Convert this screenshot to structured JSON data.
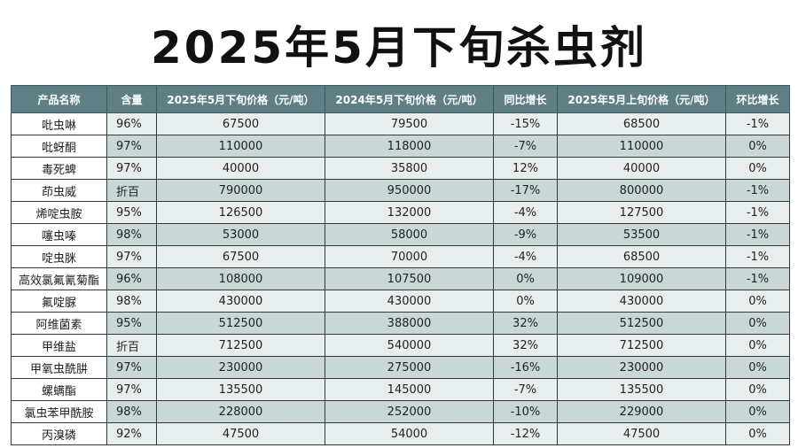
{
  "title": "2025年5月下旬杀虫剂",
  "table": {
    "headers": [
      "产品名称",
      "含量",
      "2025年5月下旬价格（元/吨）",
      "2024年5月下旬价格（元/吨）",
      "同比增长",
      "2025年5月上旬价格（元/吨）",
      "环比增长"
    ],
    "rows": [
      [
        "吡虫啉",
        "96%",
        "67500",
        "79500",
        "-15%",
        "68500",
        "-1%"
      ],
      [
        "吡蚜酮",
        "97%",
        "110000",
        "118000",
        "-7%",
        "110000",
        "0%"
      ],
      [
        "毒死蜱",
        "97%",
        "40000",
        "35800",
        "12%",
        "40000",
        "0%"
      ],
      [
        "茚虫威",
        "折百",
        "790000",
        "950000",
        "-17%",
        "800000",
        "-1%"
      ],
      [
        "烯啶虫胺",
        "95%",
        "126500",
        "132000",
        "-4%",
        "127500",
        "-1%"
      ],
      [
        "噻虫嗪",
        "98%",
        "53000",
        "58000",
        "-9%",
        "53500",
        "-1%"
      ],
      [
        "啶虫脒",
        "97%",
        "67500",
        "70000",
        "-4%",
        "68500",
        "-1%"
      ],
      [
        "高效氯氟氰菊酯",
        "96%",
        "108000",
        "107500",
        "0%",
        "109000",
        "-1%"
      ],
      [
        "氟啶脲",
        "98%",
        "430000",
        "430000",
        "0%",
        "430000",
        "0%"
      ],
      [
        "阿维菌素",
        "95%",
        "512500",
        "388000",
        "32%",
        "512500",
        "0%"
      ],
      [
        "甲维盐",
        "折百",
        "712500",
        "540000",
        "32%",
        "712500",
        "0%"
      ],
      [
        "甲氧虫酰肼",
        "97%",
        "230000",
        "275000",
        "-16%",
        "230000",
        "0%"
      ],
      [
        "螺螨酯",
        "97%",
        "135500",
        "145000",
        "-7%",
        "135500",
        "0%"
      ],
      [
        "氯虫苯甲酰胺",
        "98%",
        "228000",
        "252000",
        "-10%",
        "229000",
        "0%"
      ],
      [
        "丙溴磷",
        "92%",
        "47500",
        "54000",
        "-12%",
        "47500",
        "0%"
      ]
    ]
  }
}
